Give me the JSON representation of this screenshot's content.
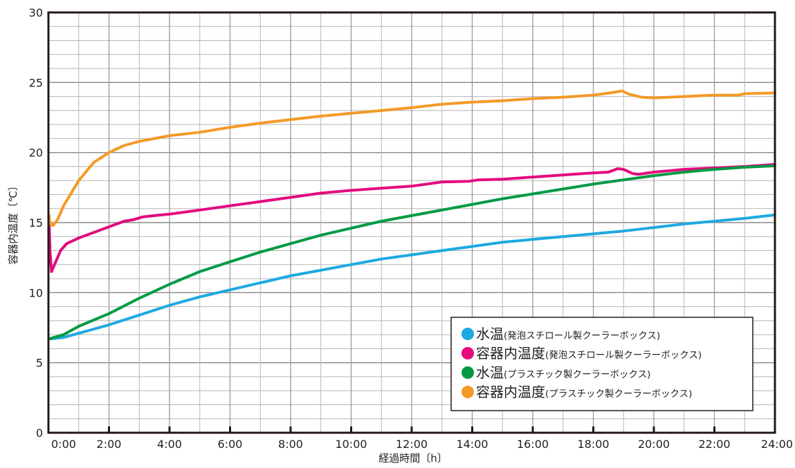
{
  "chart_data": {
    "type": "line",
    "xlabel": "経過時間〔h〕",
    "ylabel": "容器内温度〔℃〕",
    "xlim": [
      0,
      24
    ],
    "ylim": [
      0,
      30
    ],
    "x_ticks": [
      0,
      2,
      4,
      6,
      8,
      10,
      12,
      14,
      16,
      18,
      20,
      22,
      24
    ],
    "x_tick_labels": [
      "0:00",
      "2:00",
      "4:00",
      "6:00",
      "8:00",
      "10:00",
      "12:00",
      "14:00",
      "16:00",
      "18:00",
      "20:00",
      "22:00",
      "24:00"
    ],
    "y_ticks": [
      0,
      5,
      10,
      15,
      20,
      25,
      30
    ],
    "y_tick_labels": [
      "0",
      "5",
      "10",
      "15",
      "20",
      "25",
      "30"
    ],
    "grid": true,
    "legend_position": "bottom-right",
    "series": [
      {
        "name_main": "水温",
        "name_sub": "(発泡スチロール製クーラーボックス)",
        "color": "#1ea9e1",
        "points": [
          [
            0,
            6.7
          ],
          [
            0.5,
            6.8
          ],
          [
            1,
            7.1
          ],
          [
            2,
            7.7
          ],
          [
            3,
            8.4
          ],
          [
            4,
            9.1
          ],
          [
            5,
            9.7
          ],
          [
            6,
            10.2
          ],
          [
            7,
            10.7
          ],
          [
            8,
            11.2
          ],
          [
            9,
            11.6
          ],
          [
            10,
            12
          ],
          [
            11,
            12.4
          ],
          [
            12,
            12.7
          ],
          [
            13,
            13
          ],
          [
            14,
            13.3
          ],
          [
            15,
            13.6
          ],
          [
            16,
            13.8
          ],
          [
            17,
            14
          ],
          [
            18,
            14.2
          ],
          [
            19,
            14.4
          ],
          [
            20,
            14.65
          ],
          [
            21,
            14.9
          ],
          [
            22,
            15.1
          ],
          [
            23,
            15.3
          ],
          [
            24,
            15.55
          ]
        ]
      },
      {
        "name_main": "容器内温度",
        "name_sub": "(発泡スチロール製クーラーボックス)",
        "color": "#e4097f",
        "points": [
          [
            -0.05,
            15.3
          ],
          [
            0.05,
            13
          ],
          [
            0.1,
            11.5
          ],
          [
            0.2,
            12
          ],
          [
            0.4,
            13
          ],
          [
            0.6,
            13.5
          ],
          [
            1,
            13.9
          ],
          [
            1.5,
            14.3
          ],
          [
            2,
            14.7
          ],
          [
            2.5,
            15.1
          ],
          [
            2.8,
            15.2
          ],
          [
            3.1,
            15.4
          ],
          [
            3.5,
            15.5
          ],
          [
            4,
            15.6
          ],
          [
            5,
            15.9
          ],
          [
            6,
            16.2
          ],
          [
            7,
            16.5
          ],
          [
            8,
            16.8
          ],
          [
            9,
            17.1
          ],
          [
            10,
            17.3
          ],
          [
            11,
            17.45
          ],
          [
            12,
            17.6
          ],
          [
            13,
            17.9
          ],
          [
            13.9,
            17.95
          ],
          [
            14.2,
            18.05
          ],
          [
            15,
            18.1
          ],
          [
            16,
            18.25
          ],
          [
            17,
            18.4
          ],
          [
            18,
            18.55
          ],
          [
            18.5,
            18.6
          ],
          [
            18.8,
            18.85
          ],
          [
            19,
            18.8
          ],
          [
            19.3,
            18.5
          ],
          [
            19.5,
            18.45
          ],
          [
            20,
            18.6
          ],
          [
            21,
            18.8
          ],
          [
            22,
            18.9
          ],
          [
            23,
            19
          ],
          [
            24,
            19.15
          ]
        ]
      },
      {
        "name_main": "水温",
        "name_sub": "(プラスチック製クーラーボックス)",
        "color": "#009a44",
        "points": [
          [
            0,
            6.7
          ],
          [
            0.5,
            7
          ],
          [
            1,
            7.6
          ],
          [
            2,
            8.5
          ],
          [
            3,
            9.6
          ],
          [
            4,
            10.6
          ],
          [
            5,
            11.5
          ],
          [
            6,
            12.2
          ],
          [
            7,
            12.9
          ],
          [
            8,
            13.5
          ],
          [
            9,
            14.1
          ],
          [
            10,
            14.6
          ],
          [
            11,
            15.1
          ],
          [
            12,
            15.5
          ],
          [
            13,
            15.9
          ],
          [
            14,
            16.3
          ],
          [
            15,
            16.7
          ],
          [
            16,
            17.05
          ],
          [
            17,
            17.4
          ],
          [
            18,
            17.75
          ],
          [
            19,
            18.05
          ],
          [
            20,
            18.35
          ],
          [
            21,
            18.6
          ],
          [
            22,
            18.8
          ],
          [
            23,
            18.95
          ],
          [
            24,
            19.05
          ]
        ]
      },
      {
        "name_main": "容器内温度",
        "name_sub": "(プラスチック製クーラーボックス)",
        "color": "#f39a26",
        "points": [
          [
            -0.05,
            15.5
          ],
          [
            0.05,
            14.9
          ],
          [
            0.15,
            14.8
          ],
          [
            0.3,
            15.2
          ],
          [
            0.5,
            16.2
          ],
          [
            1,
            18
          ],
          [
            1.5,
            19.3
          ],
          [
            2,
            20
          ],
          [
            2.5,
            20.5
          ],
          [
            3,
            20.8
          ],
          [
            4,
            21.2
          ],
          [
            5,
            21.45
          ],
          [
            6,
            21.8
          ],
          [
            7,
            22.1
          ],
          [
            8,
            22.35
          ],
          [
            9,
            22.6
          ],
          [
            10,
            22.8
          ],
          [
            11,
            23
          ],
          [
            12,
            23.2
          ],
          [
            13,
            23.45
          ],
          [
            14,
            23.6
          ],
          [
            15,
            23.7
          ],
          [
            16,
            23.85
          ],
          [
            17,
            23.95
          ],
          [
            18,
            24.1
          ],
          [
            18.7,
            24.3
          ],
          [
            18.95,
            24.4
          ],
          [
            19.2,
            24.15
          ],
          [
            19.6,
            23.95
          ],
          [
            20,
            23.9
          ],
          [
            21,
            24
          ],
          [
            22,
            24.1
          ],
          [
            22.8,
            24.1
          ],
          [
            23,
            24.2
          ],
          [
            24,
            24.25
          ]
        ]
      }
    ]
  }
}
